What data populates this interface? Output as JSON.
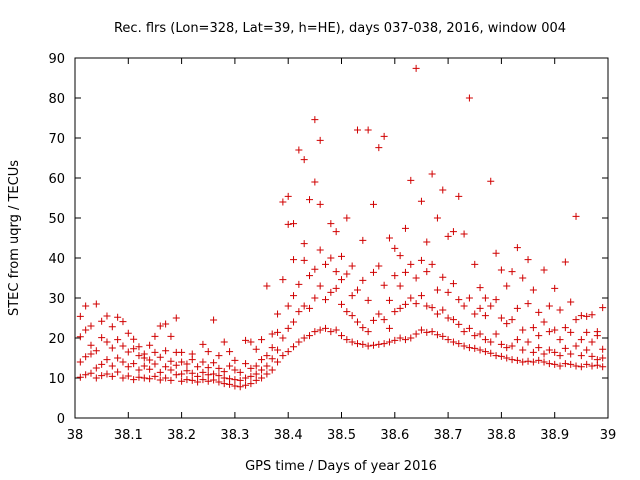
{
  "chart_data": {
    "type": "scatter",
    "title": "Rec. flrs (Lon=328, Lat=39, h=HE), days 037-038, 2016, window 004",
    "xlabel": "GPS time / Days of year 2016",
    "ylabel": "STEC from uqrg / TECUs",
    "xlim": [
      38,
      39
    ],
    "ylim": [
      0,
      90
    ],
    "x_ticks": [
      "38",
      "38.1",
      "38.2",
      "38.3",
      "38.4",
      "38.5",
      "38.6",
      "38.7",
      "38.8",
      "38.9",
      "39"
    ],
    "y_ticks": [
      "0",
      "10",
      "20",
      "30",
      "40",
      "50",
      "60",
      "70",
      "80",
      "90"
    ],
    "marker": "+",
    "color": "#d00000",
    "points": [
      [
        38.01,
        10.2
      ],
      [
        38.01,
        14.0
      ],
      [
        38.01,
        20.3
      ],
      [
        38.01,
        25.4
      ],
      [
        38.02,
        10.8
      ],
      [
        38.02,
        15.3
      ],
      [
        38.02,
        22.0
      ],
      [
        38.02,
        28.0
      ],
      [
        38.03,
        11.2
      ],
      [
        38.03,
        16.0
      ],
      [
        38.03,
        18.2
      ],
      [
        38.03,
        23.0
      ],
      [
        38.04,
        10.0
      ],
      [
        38.04,
        12.5
      ],
      [
        38.04,
        16.8
      ],
      [
        38.04,
        28.5
      ],
      [
        38.05,
        10.6
      ],
      [
        38.05,
        13.4
      ],
      [
        38.05,
        20.1
      ],
      [
        38.05,
        24.2
      ],
      [
        38.06,
        11.0
      ],
      [
        38.06,
        14.6
      ],
      [
        38.06,
        19.0
      ],
      [
        38.06,
        25.5
      ],
      [
        38.07,
        10.4
      ],
      [
        38.07,
        13.0
      ],
      [
        38.07,
        17.5
      ],
      [
        38.07,
        22.8
      ],
      [
        38.08,
        11.5
      ],
      [
        38.08,
        15.0
      ],
      [
        38.08,
        19.6
      ],
      [
        38.08,
        25.2
      ],
      [
        38.09,
        10.0
      ],
      [
        38.09,
        14.0
      ],
      [
        38.09,
        18.0
      ],
      [
        38.09,
        24.1
      ],
      [
        38.1,
        10.5
      ],
      [
        38.1,
        12.8
      ],
      [
        38.1,
        16.5
      ],
      [
        38.1,
        21.2
      ],
      [
        38.11,
        9.6
      ],
      [
        38.11,
        13.6
      ],
      [
        38.11,
        17.3
      ],
      [
        38.11,
        19.7
      ],
      [
        38.12,
        10.2
      ],
      [
        38.12,
        12.0
      ],
      [
        38.12,
        15.6
      ],
      [
        38.12,
        17.8
      ],
      [
        38.13,
        10.0
      ],
      [
        38.13,
        13.0
      ],
      [
        38.13,
        15.0
      ],
      [
        38.13,
        16.0
      ],
      [
        38.14,
        9.8
      ],
      [
        38.14,
        12.2
      ],
      [
        38.14,
        14.5
      ],
      [
        38.14,
        18.2
      ],
      [
        38.15,
        10.4
      ],
      [
        38.15,
        13.5
      ],
      [
        38.15,
        16.4
      ],
      [
        38.15,
        20.4
      ],
      [
        38.16,
        9.5
      ],
      [
        38.16,
        11.4
      ],
      [
        38.16,
        15.2
      ],
      [
        38.16,
        23.0
      ],
      [
        38.17,
        10.0
      ],
      [
        38.17,
        12.8
      ],
      [
        38.17,
        16.8
      ],
      [
        38.17,
        23.5
      ],
      [
        38.18,
        9.4
      ],
      [
        38.18,
        12.0
      ],
      [
        38.18,
        14.2
      ],
      [
        38.18,
        20.4
      ],
      [
        38.19,
        10.8
      ],
      [
        38.19,
        13.2
      ],
      [
        38.19,
        16.4
      ],
      [
        38.19,
        25.0
      ],
      [
        38.2,
        9.2
      ],
      [
        38.2,
        11.0
      ],
      [
        38.2,
        14.0
      ],
      [
        38.2,
        16.4
      ],
      [
        38.21,
        9.6
      ],
      [
        38.21,
        11.8
      ],
      [
        38.21,
        13.5
      ],
      [
        38.22,
        9.4
      ],
      [
        38.22,
        11.2
      ],
      [
        38.22,
        14.6
      ],
      [
        38.22,
        16.0
      ],
      [
        38.23,
        9.0
      ],
      [
        38.23,
        10.4
      ],
      [
        38.23,
        12.8
      ],
      [
        38.24,
        9.6
      ],
      [
        38.24,
        11.4
      ],
      [
        38.24,
        14.0
      ],
      [
        38.24,
        18.4
      ],
      [
        38.25,
        9.2
      ],
      [
        38.25,
        10.8
      ],
      [
        38.25,
        12.6
      ],
      [
        38.25,
        16.6
      ],
      [
        38.26,
        9.5
      ],
      [
        38.26,
        11.0
      ],
      [
        38.26,
        13.8
      ],
      [
        38.26,
        24.5
      ],
      [
        38.27,
        9.0
      ],
      [
        38.27,
        10.6
      ],
      [
        38.27,
        12.4
      ],
      [
        38.27,
        15.6
      ],
      [
        38.28,
        8.6
      ],
      [
        38.28,
        10.0
      ],
      [
        38.28,
        11.6
      ],
      [
        38.28,
        19.0
      ],
      [
        38.29,
        8.4
      ],
      [
        38.29,
        9.8
      ],
      [
        38.29,
        13.0
      ],
      [
        38.29,
        16.6
      ],
      [
        38.3,
        8.0
      ],
      [
        38.3,
        9.6
      ],
      [
        38.3,
        12.0
      ],
      [
        38.3,
        14.4
      ],
      [
        38.31,
        7.8
      ],
      [
        38.31,
        9.4
      ],
      [
        38.31,
        11.4
      ],
      [
        38.32,
        8.2
      ],
      [
        38.32,
        10.0
      ],
      [
        38.32,
        13.6
      ],
      [
        38.32,
        19.4
      ],
      [
        38.33,
        8.6
      ],
      [
        38.33,
        10.4
      ],
      [
        38.33,
        12.4
      ],
      [
        38.33,
        19.0
      ],
      [
        38.34,
        9.4
      ],
      [
        38.34,
        11.0
      ],
      [
        38.34,
        13.0
      ],
      [
        38.34,
        17.2
      ],
      [
        38.35,
        10.0
      ],
      [
        38.35,
        12.0
      ],
      [
        38.35,
        14.6
      ],
      [
        38.35,
        19.6
      ],
      [
        38.36,
        11.0
      ],
      [
        38.36,
        13.0
      ],
      [
        38.36,
        15.6
      ],
      [
        38.36,
        33.0
      ],
      [
        38.37,
        12.0
      ],
      [
        38.37,
        14.8
      ],
      [
        38.37,
        17.6
      ],
      [
        38.37,
        21.0
      ],
      [
        38.38,
        14.0
      ],
      [
        38.38,
        17.0
      ],
      [
        38.38,
        21.4
      ],
      [
        38.38,
        26.0
      ],
      [
        38.39,
        15.6
      ],
      [
        38.39,
        20.0
      ],
      [
        38.39,
        34.6
      ],
      [
        38.39,
        54.0
      ],
      [
        38.4,
        16.6
      ],
      [
        38.4,
        22.4
      ],
      [
        38.4,
        28.0
      ],
      [
        38.4,
        48.4
      ],
      [
        38.4,
        55.4
      ],
      [
        38.41,
        17.8
      ],
      [
        38.41,
        24.0
      ],
      [
        38.41,
        30.6
      ],
      [
        38.41,
        39.6
      ],
      [
        38.41,
        48.6
      ],
      [
        38.42,
        19.0
      ],
      [
        38.42,
        26.6
      ],
      [
        38.42,
        33.4
      ],
      [
        38.42,
        67.0
      ],
      [
        38.43,
        20.0
      ],
      [
        38.43,
        28.0
      ],
      [
        38.43,
        39.4
      ],
      [
        38.43,
        43.6
      ],
      [
        38.43,
        64.6
      ],
      [
        38.44,
        20.6
      ],
      [
        38.44,
        27.4
      ],
      [
        38.44,
        35.6
      ],
      [
        38.44,
        54.6
      ],
      [
        38.45,
        21.6
      ],
      [
        38.45,
        30.0
      ],
      [
        38.45,
        37.2
      ],
      [
        38.45,
        59.0
      ],
      [
        38.45,
        74.6
      ],
      [
        38.46,
        22.0
      ],
      [
        38.46,
        33.0
      ],
      [
        38.46,
        42.0
      ],
      [
        38.46,
        53.4
      ],
      [
        38.46,
        69.4
      ],
      [
        38.47,
        22.4
      ],
      [
        38.47,
        29.6
      ],
      [
        38.47,
        38.4
      ],
      [
        38.48,
        21.6
      ],
      [
        38.48,
        31.4
      ],
      [
        38.48,
        40.0
      ],
      [
        38.48,
        48.6
      ],
      [
        38.49,
        22.0
      ],
      [
        38.49,
        32.4
      ],
      [
        38.49,
        36.6
      ],
      [
        38.49,
        46.6
      ],
      [
        38.5,
        20.6
      ],
      [
        38.5,
        28.4
      ],
      [
        38.5,
        34.6
      ],
      [
        38.5,
        40.4
      ],
      [
        38.51,
        19.6
      ],
      [
        38.51,
        26.6
      ],
      [
        38.51,
        36.0
      ],
      [
        38.51,
        50.0
      ],
      [
        38.52,
        19.0
      ],
      [
        38.52,
        25.6
      ],
      [
        38.52,
        30.6
      ],
      [
        38.52,
        38.0
      ],
      [
        38.53,
        18.6
      ],
      [
        38.53,
        24.0
      ],
      [
        38.53,
        32.0
      ],
      [
        38.53,
        72.0
      ],
      [
        38.54,
        18.4
      ],
      [
        38.54,
        22.6
      ],
      [
        38.54,
        34.4
      ],
      [
        38.54,
        44.4
      ],
      [
        38.55,
        18.0
      ],
      [
        38.55,
        21.6
      ],
      [
        38.55,
        29.4
      ],
      [
        38.55,
        72.0
      ],
      [
        38.56,
        18.2
      ],
      [
        38.56,
        24.4
      ],
      [
        38.56,
        36.4
      ],
      [
        38.56,
        53.4
      ],
      [
        38.57,
        18.4
      ],
      [
        38.57,
        26.0
      ],
      [
        38.57,
        38.0
      ],
      [
        38.57,
        67.6
      ],
      [
        38.58,
        18.6
      ],
      [
        38.58,
        24.6
      ],
      [
        38.58,
        33.2
      ],
      [
        38.58,
        70.4
      ],
      [
        38.59,
        19.0
      ],
      [
        38.59,
        22.4
      ],
      [
        38.59,
        29.4
      ],
      [
        38.59,
        45.0
      ],
      [
        38.6,
        19.4
      ],
      [
        38.6,
        26.6
      ],
      [
        38.6,
        35.6
      ],
      [
        38.6,
        42.4
      ],
      [
        38.61,
        20.0
      ],
      [
        38.61,
        27.4
      ],
      [
        38.61,
        33.0
      ],
      [
        38.61,
        40.6
      ],
      [
        38.62,
        19.6
      ],
      [
        38.62,
        28.4
      ],
      [
        38.62,
        36.4
      ],
      [
        38.62,
        47.4
      ],
      [
        38.63,
        20.0
      ],
      [
        38.63,
        30.0
      ],
      [
        38.63,
        38.4
      ],
      [
        38.63,
        59.4
      ],
      [
        38.64,
        21.0
      ],
      [
        38.64,
        28.6
      ],
      [
        38.64,
        35.0
      ],
      [
        38.64,
        87.4
      ],
      [
        38.65,
        22.0
      ],
      [
        38.65,
        30.6
      ],
      [
        38.65,
        39.4
      ],
      [
        38.65,
        54.2
      ],
      [
        38.66,
        21.4
      ],
      [
        38.66,
        28.0
      ],
      [
        38.66,
        36.6
      ],
      [
        38.66,
        44.0
      ],
      [
        38.67,
        21.6
      ],
      [
        38.67,
        27.6
      ],
      [
        38.67,
        38.4
      ],
      [
        38.67,
        61.0
      ],
      [
        38.68,
        20.8
      ],
      [
        38.68,
        26.0
      ],
      [
        38.68,
        32.0
      ],
      [
        38.68,
        50.0
      ],
      [
        38.69,
        20.4
      ],
      [
        38.69,
        27.0
      ],
      [
        38.69,
        35.2
      ],
      [
        38.69,
        57.0
      ],
      [
        38.7,
        19.6
      ],
      [
        38.7,
        25.0
      ],
      [
        38.7,
        31.4
      ],
      [
        38.7,
        45.4
      ],
      [
        38.71,
        19.0
      ],
      [
        38.71,
        24.6
      ],
      [
        38.71,
        33.6
      ],
      [
        38.71,
        46.6
      ],
      [
        38.72,
        18.6
      ],
      [
        38.72,
        23.4
      ],
      [
        38.72,
        29.6
      ],
      [
        38.72,
        55.4
      ],
      [
        38.73,
        18.0
      ],
      [
        38.73,
        21.6
      ],
      [
        38.73,
        28.0
      ],
      [
        38.73,
        46.0
      ],
      [
        38.74,
        17.6
      ],
      [
        38.74,
        22.4
      ],
      [
        38.74,
        30.0
      ],
      [
        38.74,
        80.0
      ],
      [
        38.75,
        17.4
      ],
      [
        38.75,
        20.6
      ],
      [
        38.75,
        26.0
      ],
      [
        38.75,
        38.4
      ],
      [
        38.76,
        17.0
      ],
      [
        38.76,
        21.0
      ],
      [
        38.76,
        27.4
      ],
      [
        38.76,
        32.6
      ],
      [
        38.77,
        16.6
      ],
      [
        38.77,
        19.6
      ],
      [
        38.77,
        25.6
      ],
      [
        38.77,
        30.0
      ],
      [
        38.78,
        16.2
      ],
      [
        38.78,
        19.0
      ],
      [
        38.78,
        28.0
      ],
      [
        38.78,
        59.2
      ],
      [
        38.79,
        15.6
      ],
      [
        38.79,
        21.0
      ],
      [
        38.79,
        29.6
      ],
      [
        38.79,
        41.2
      ],
      [
        38.8,
        15.4
      ],
      [
        38.8,
        18.4
      ],
      [
        38.8,
        25.0
      ],
      [
        38.8,
        37.0
      ],
      [
        38.81,
        15.0
      ],
      [
        38.81,
        17.6
      ],
      [
        38.81,
        23.6
      ],
      [
        38.81,
        33.0
      ],
      [
        38.82,
        14.6
      ],
      [
        38.82,
        18.0
      ],
      [
        38.82,
        24.6
      ],
      [
        38.82,
        36.6
      ],
      [
        38.83,
        14.4
      ],
      [
        38.83,
        19.6
      ],
      [
        38.83,
        27.4
      ],
      [
        38.83,
        42.6
      ],
      [
        38.84,
        14.0
      ],
      [
        38.84,
        17.0
      ],
      [
        38.84,
        22.0
      ],
      [
        38.84,
        35.0
      ],
      [
        38.85,
        14.2
      ],
      [
        38.85,
        19.0
      ],
      [
        38.85,
        28.6
      ],
      [
        38.85,
        39.6
      ],
      [
        38.86,
        14.0
      ],
      [
        38.86,
        16.4
      ],
      [
        38.86,
        22.6
      ],
      [
        38.86,
        32.0
      ],
      [
        38.87,
        14.4
      ],
      [
        38.87,
        17.6
      ],
      [
        38.87,
        20.6
      ],
      [
        38.87,
        26.4
      ],
      [
        38.88,
        14.0
      ],
      [
        38.88,
        16.0
      ],
      [
        38.88,
        24.0
      ],
      [
        38.88,
        37.0
      ],
      [
        38.89,
        13.6
      ],
      [
        38.89,
        17.0
      ],
      [
        38.89,
        21.6
      ],
      [
        38.89,
        28.0
      ],
      [
        38.9,
        13.4
      ],
      [
        38.9,
        16.4
      ],
      [
        38.9,
        22.0
      ],
      [
        38.9,
        32.4
      ],
      [
        38.91,
        13.0
      ],
      [
        38.91,
        15.6
      ],
      [
        38.91,
        19.6
      ],
      [
        38.91,
        27.0
      ],
      [
        38.92,
        13.6
      ],
      [
        38.92,
        17.4
      ],
      [
        38.92,
        22.6
      ],
      [
        38.92,
        39.0
      ],
      [
        38.93,
        13.4
      ],
      [
        38.93,
        16.0
      ],
      [
        38.93,
        21.4
      ],
      [
        38.93,
        29.0
      ],
      [
        38.94,
        13.0
      ],
      [
        38.94,
        18.0
      ],
      [
        38.94,
        24.6
      ],
      [
        38.94,
        50.4
      ],
      [
        38.95,
        12.8
      ],
      [
        38.95,
        15.6
      ],
      [
        38.95,
        19.6
      ],
      [
        38.95,
        25.6
      ],
      [
        38.96,
        13.4
      ],
      [
        38.96,
        17.0
      ],
      [
        38.96,
        21.4
      ],
      [
        38.96,
        25.4
      ],
      [
        38.97,
        13.0
      ],
      [
        38.97,
        15.4
      ],
      [
        38.97,
        19.0
      ],
      [
        38.97,
        25.8
      ],
      [
        38.98,
        13.2
      ],
      [
        38.98,
        14.6
      ],
      [
        38.98,
        20.6
      ],
      [
        38.98,
        21.6
      ],
      [
        38.99,
        12.8
      ],
      [
        38.99,
        15.0
      ],
      [
        38.99,
        17.2
      ],
      [
        38.99,
        27.6
      ]
    ]
  }
}
